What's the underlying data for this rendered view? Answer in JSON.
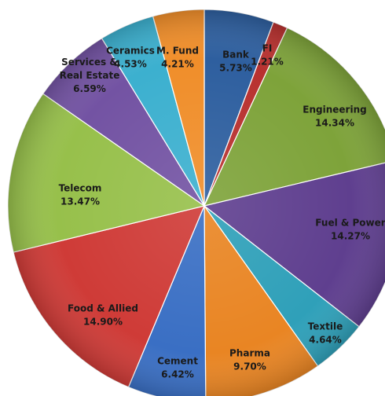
{
  "chart_data": {
    "type": "pie",
    "title": "",
    "start_angle_deg": 0,
    "direction": "clockwise",
    "slices": [
      {
        "label": "Bank",
        "pct": "5.73%",
        "value": 5.73,
        "color": "#2e5f9f"
      },
      {
        "label": "FI",
        "pct": "1.21%",
        "value": 1.21,
        "color": "#b8312f"
      },
      {
        "label": "Engineering",
        "pct": "14.34%",
        "value": 14.34,
        "color": "#7ea33a"
      },
      {
        "label": "Fuel & Power",
        "pct": "14.27%",
        "value": 14.27,
        "color": "#5f3f8f"
      },
      {
        "label": "Textile",
        "pct": "4.64%",
        "value": 4.64,
        "color": "#2fa0b9"
      },
      {
        "label": "Pharma",
        "pct": "9.70%",
        "value": 9.7,
        "color": "#e98523"
      },
      {
        "label": "Cement",
        "pct": "6.42%",
        "value": 6.42,
        "color": "#3a6fc4"
      },
      {
        "label": "Food & Allied",
        "pct": "14.90%",
        "value": 14.9,
        "color": "#cf3b37"
      },
      {
        "label": "Telecom",
        "pct": "13.47%",
        "value": 13.47,
        "color": "#97c04b"
      },
      {
        "label": "Services & Real Estate",
        "label_lines": [
          "Services &",
          "Real Estate"
        ],
        "pct": "6.59%",
        "value": 6.59,
        "color": "#7353a3"
      },
      {
        "label": "Ceramics",
        "pct": "4.53%",
        "value": 4.53,
        "color": "#3cb0cf"
      },
      {
        "label": "M. Fund",
        "pct": "4.21%",
        "value": 4.21,
        "color": "#f08e2a"
      }
    ]
  }
}
